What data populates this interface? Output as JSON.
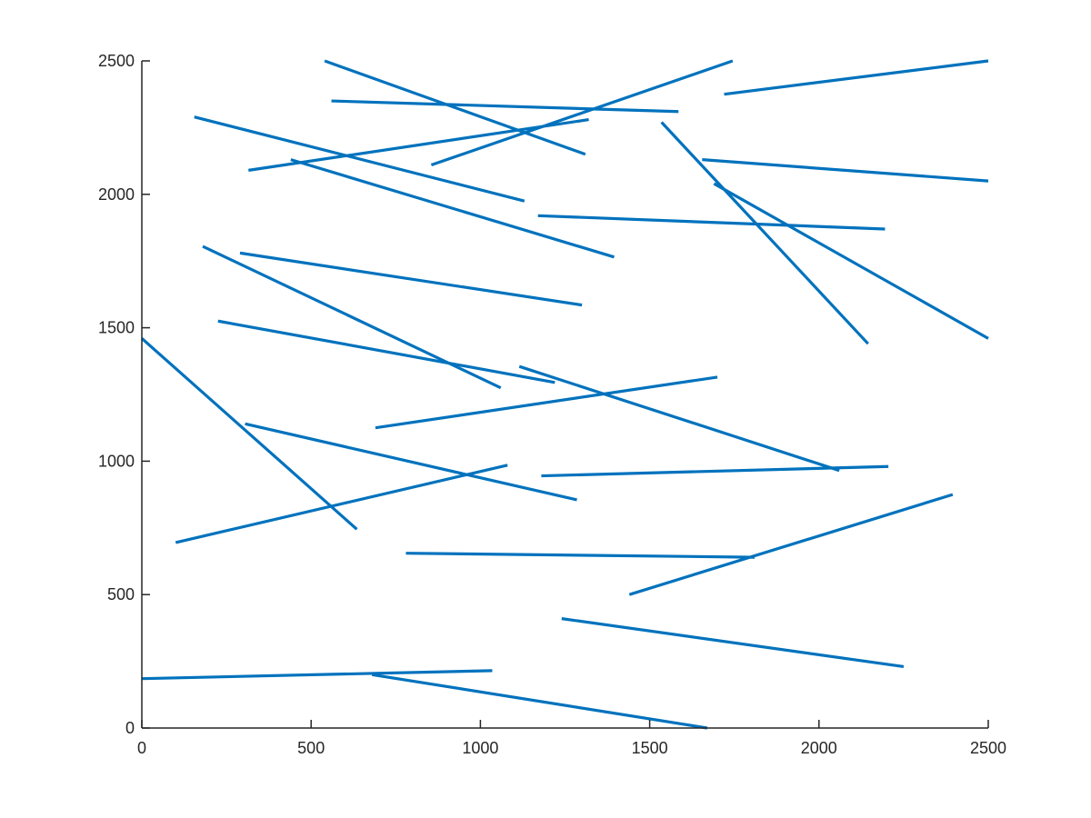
{
  "chart_data": {
    "type": "line",
    "title": "",
    "xlabel": "",
    "ylabel": "",
    "xlim": [
      0,
      2500
    ],
    "ylim": [
      0,
      2500
    ],
    "xticks": [
      "0",
      "500",
      "1000",
      "1500",
      "2000",
      "2500"
    ],
    "yticks": [
      "0",
      "500",
      "1000",
      "1500",
      "2000",
      "2500"
    ],
    "grid": false,
    "legend": "none",
    "line_color": "#0072BD",
    "segments": [
      {
        "x": [
          540,
          1310
        ],
        "y": [
          2500,
          2150
        ]
      },
      {
        "x": [
          560,
          1585
        ],
        "y": [
          2350,
          2310
        ]
      },
      {
        "x": [
          855,
          1745
        ],
        "y": [
          2110,
          2500
        ]
      },
      {
        "x": [
          1720,
          2500
        ],
        "y": [
          2375,
          2500
        ]
      },
      {
        "x": [
          155,
          1130
        ],
        "y": [
          2290,
          1975
        ]
      },
      {
        "x": [
          315,
          1320
        ],
        "y": [
          2090,
          2280
        ]
      },
      {
        "x": [
          440,
          1395
        ],
        "y": [
          2130,
          1765
        ]
      },
      {
        "x": [
          1535,
          2145
        ],
        "y": [
          2270,
          1440
        ]
      },
      {
        "x": [
          1655,
          2500
        ],
        "y": [
          2130,
          2050
        ]
      },
      {
        "x": [
          1690,
          2500
        ],
        "y": [
          2040,
          1460
        ]
      },
      {
        "x": [
          1170,
          2195
        ],
        "y": [
          1920,
          1870
        ]
      },
      {
        "x": [
          290,
          1300
        ],
        "y": [
          1780,
          1585
        ]
      },
      {
        "x": [
          180,
          1060
        ],
        "y": [
          1805,
          1275
        ]
      },
      {
        "x": [
          225,
          1220
        ],
        "y": [
          1525,
          1295
        ]
      },
      {
        "x": [
          1115,
          2060
        ],
        "y": [
          1355,
          965
        ]
      },
      {
        "x": [
          0,
          635
        ],
        "y": [
          1460,
          745
        ]
      },
      {
        "x": [
          690,
          1700
        ],
        "y": [
          1125,
          1315
        ]
      },
      {
        "x": [
          305,
          1285
        ],
        "y": [
          1140,
          855
        ]
      },
      {
        "x": [
          100,
          1080
        ],
        "y": [
          695,
          985
        ]
      },
      {
        "x": [
          1180,
          2205
        ],
        "y": [
          945,
          980
        ]
      },
      {
        "x": [
          780,
          1810
        ],
        "y": [
          655,
          640
        ]
      },
      {
        "x": [
          1440,
          2395
        ],
        "y": [
          500,
          875
        ]
      },
      {
        "x": [
          1240,
          2250
        ],
        "y": [
          410,
          230
        ]
      },
      {
        "x": [
          0,
          1035
        ],
        "y": [
          185,
          215
        ]
      },
      {
        "x": [
          680,
          1670
        ],
        "y": [
          200,
          0
        ]
      }
    ]
  }
}
